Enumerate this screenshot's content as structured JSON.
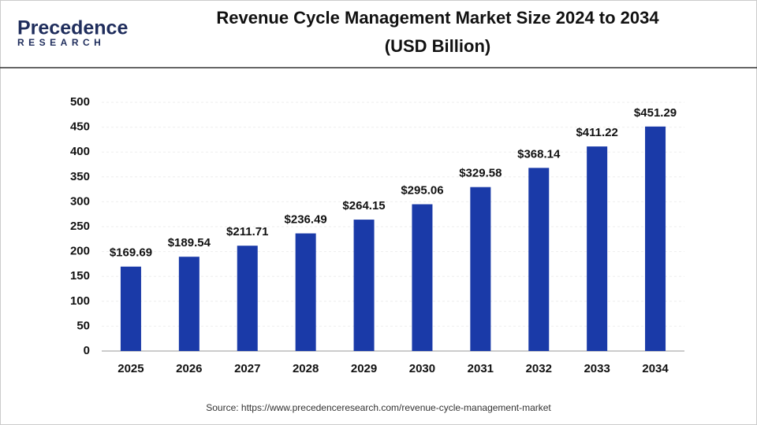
{
  "logo": {
    "name": "Precedence",
    "tagline": "RESEARCH"
  },
  "chart_data": {
    "type": "bar",
    "title": "Revenue Cycle Management Market Size 2024 to 2034",
    "subtitle": "(USD Billion)",
    "categories": [
      "2025",
      "2026",
      "2027",
      "2028",
      "2029",
      "2030",
      "2031",
      "2032",
      "2033",
      "2034"
    ],
    "values": [
      169.69,
      189.54,
      211.71,
      236.49,
      264.15,
      295.06,
      329.58,
      368.14,
      411.22,
      451.29
    ],
    "value_labels": [
      "$169.69",
      "$189.54",
      "$211.71",
      "$236.49",
      "$264.15",
      "$295.06",
      "$329.58",
      "$368.14",
      "$411.22",
      "$451.29"
    ],
    "color": "#1a3aa8",
    "ylim": [
      0,
      500
    ],
    "yticks": [
      0,
      50,
      100,
      150,
      200,
      250,
      300,
      350,
      400,
      450,
      500
    ],
    "grid": true,
    "source": "Source: https://www.precedenceresearch.com/revenue-cycle-management-market"
  }
}
